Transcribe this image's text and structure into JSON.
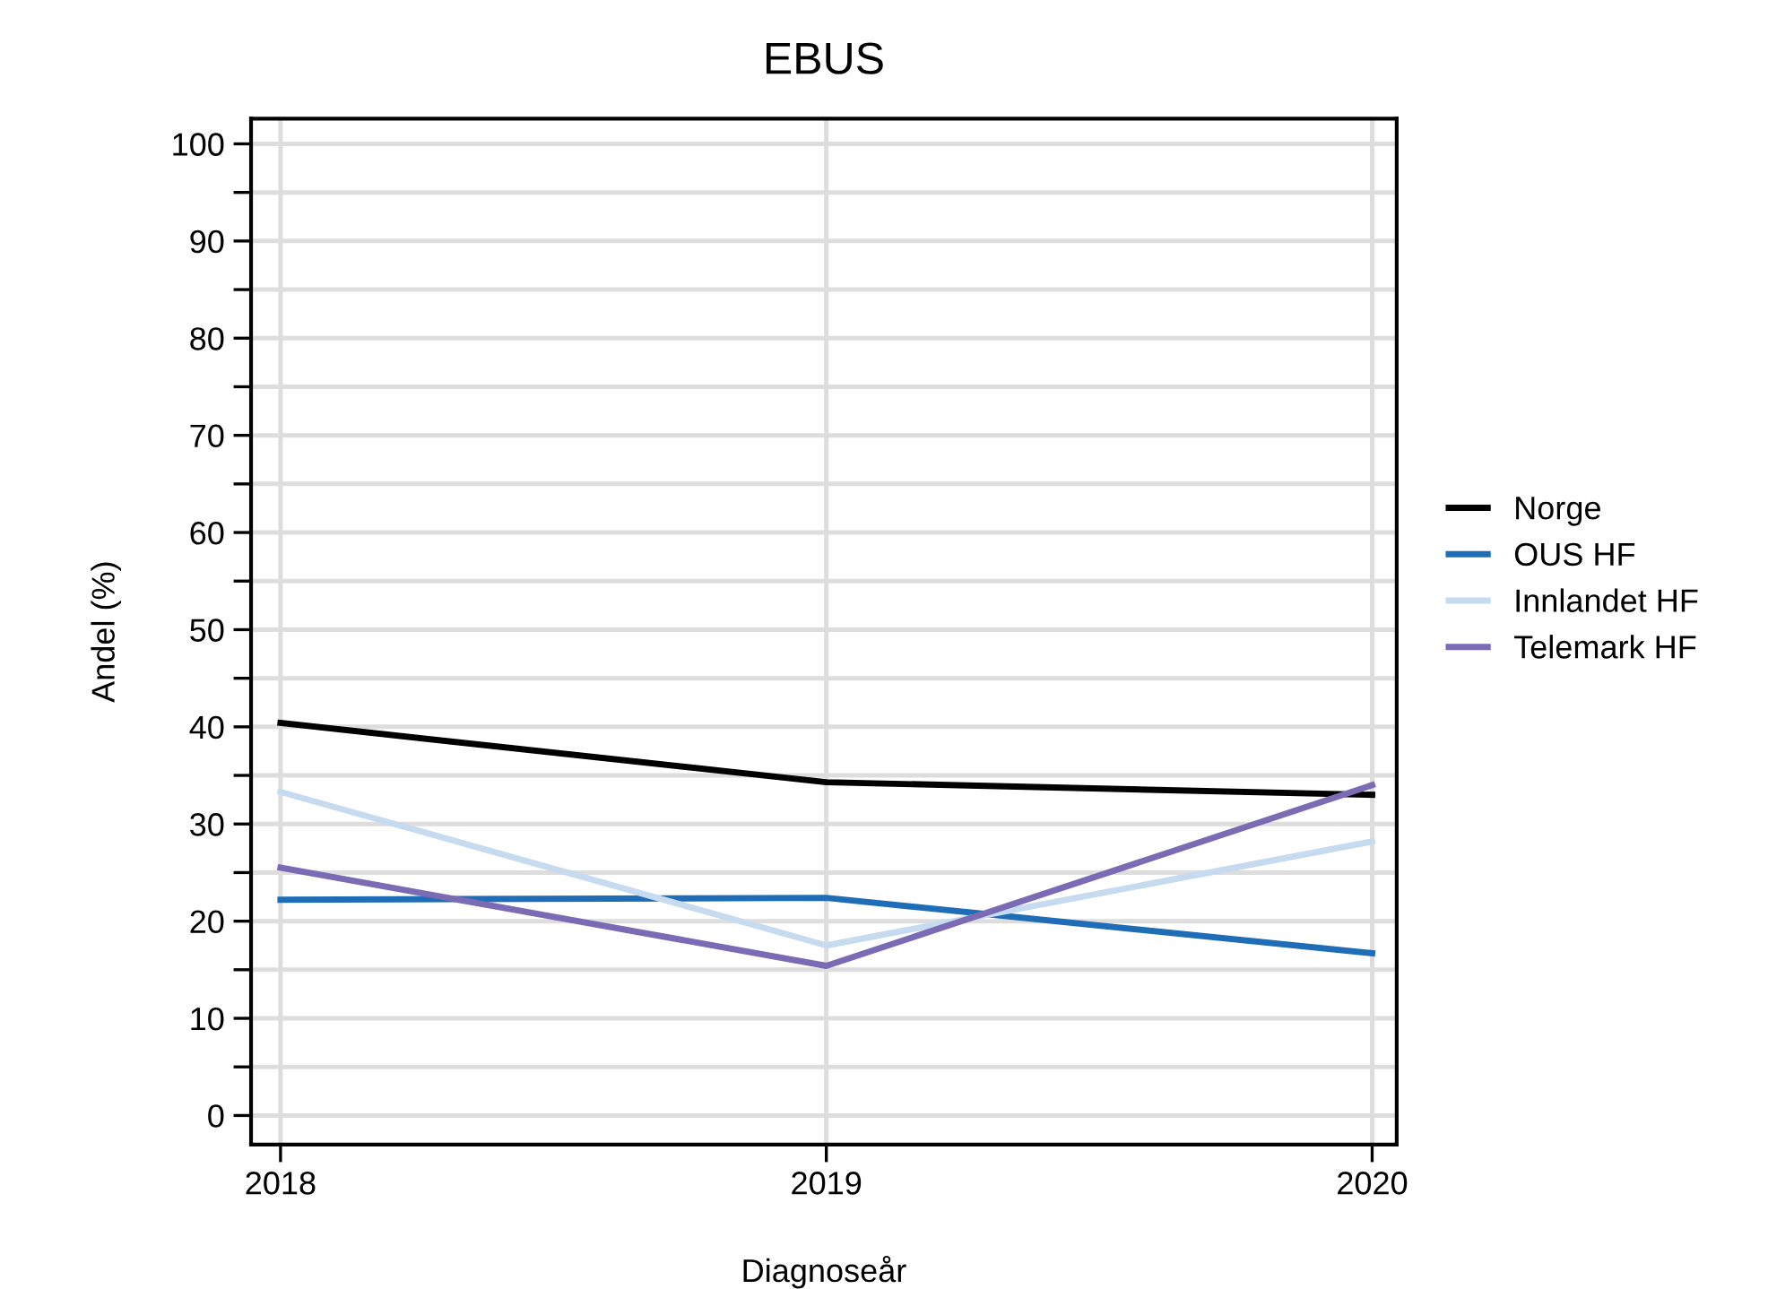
{
  "chart_data": {
    "type": "line",
    "title": "EBUS",
    "xlabel": "Diagnoseår",
    "ylabel": "Andel (%)",
    "x": [
      2018,
      2019,
      2020
    ],
    "series": [
      {
        "name": "Norge",
        "color": "#000000",
        "values": [
          40.4,
          34.3,
          33.0
        ]
      },
      {
        "name": "OUS HF",
        "color": "#1f6db6",
        "values": [
          22.2,
          22.4,
          16.7
        ]
      },
      {
        "name": "Innlandet HF",
        "color": "#c6dbef",
        "values": [
          33.3,
          17.5,
          28.2
        ]
      },
      {
        "name": "Telemark HF",
        "color": "#7a6bb4",
        "values": [
          25.5,
          15.4,
          34.0
        ]
      }
    ],
    "xlim": [
      2017.946,
      2020.045
    ],
    "ylim": [
      -3,
      102.6
    ],
    "xticks": [
      2018,
      2019,
      2020
    ],
    "yticks": [
      0,
      {
        "value": 5,
        "label": null
      },
      10,
      {
        "value": 15,
        "label": null
      },
      20,
      {
        "value": 25,
        "label": null
      },
      30,
      {
        "value": 35,
        "label": null
      },
      40,
      {
        "value": 45,
        "label": null
      },
      50,
      {
        "value": 55,
        "label": null
      },
      60,
      {
        "value": 65,
        "label": null
      },
      70,
      {
        "value": 75,
        "label": null
      },
      80,
      {
        "value": 85,
        "label": null
      },
      90,
      {
        "value": 95,
        "label": null
      },
      100
    ],
    "grid": true,
    "legend": "right",
    "marker": "none",
    "line_style": "solid"
  }
}
